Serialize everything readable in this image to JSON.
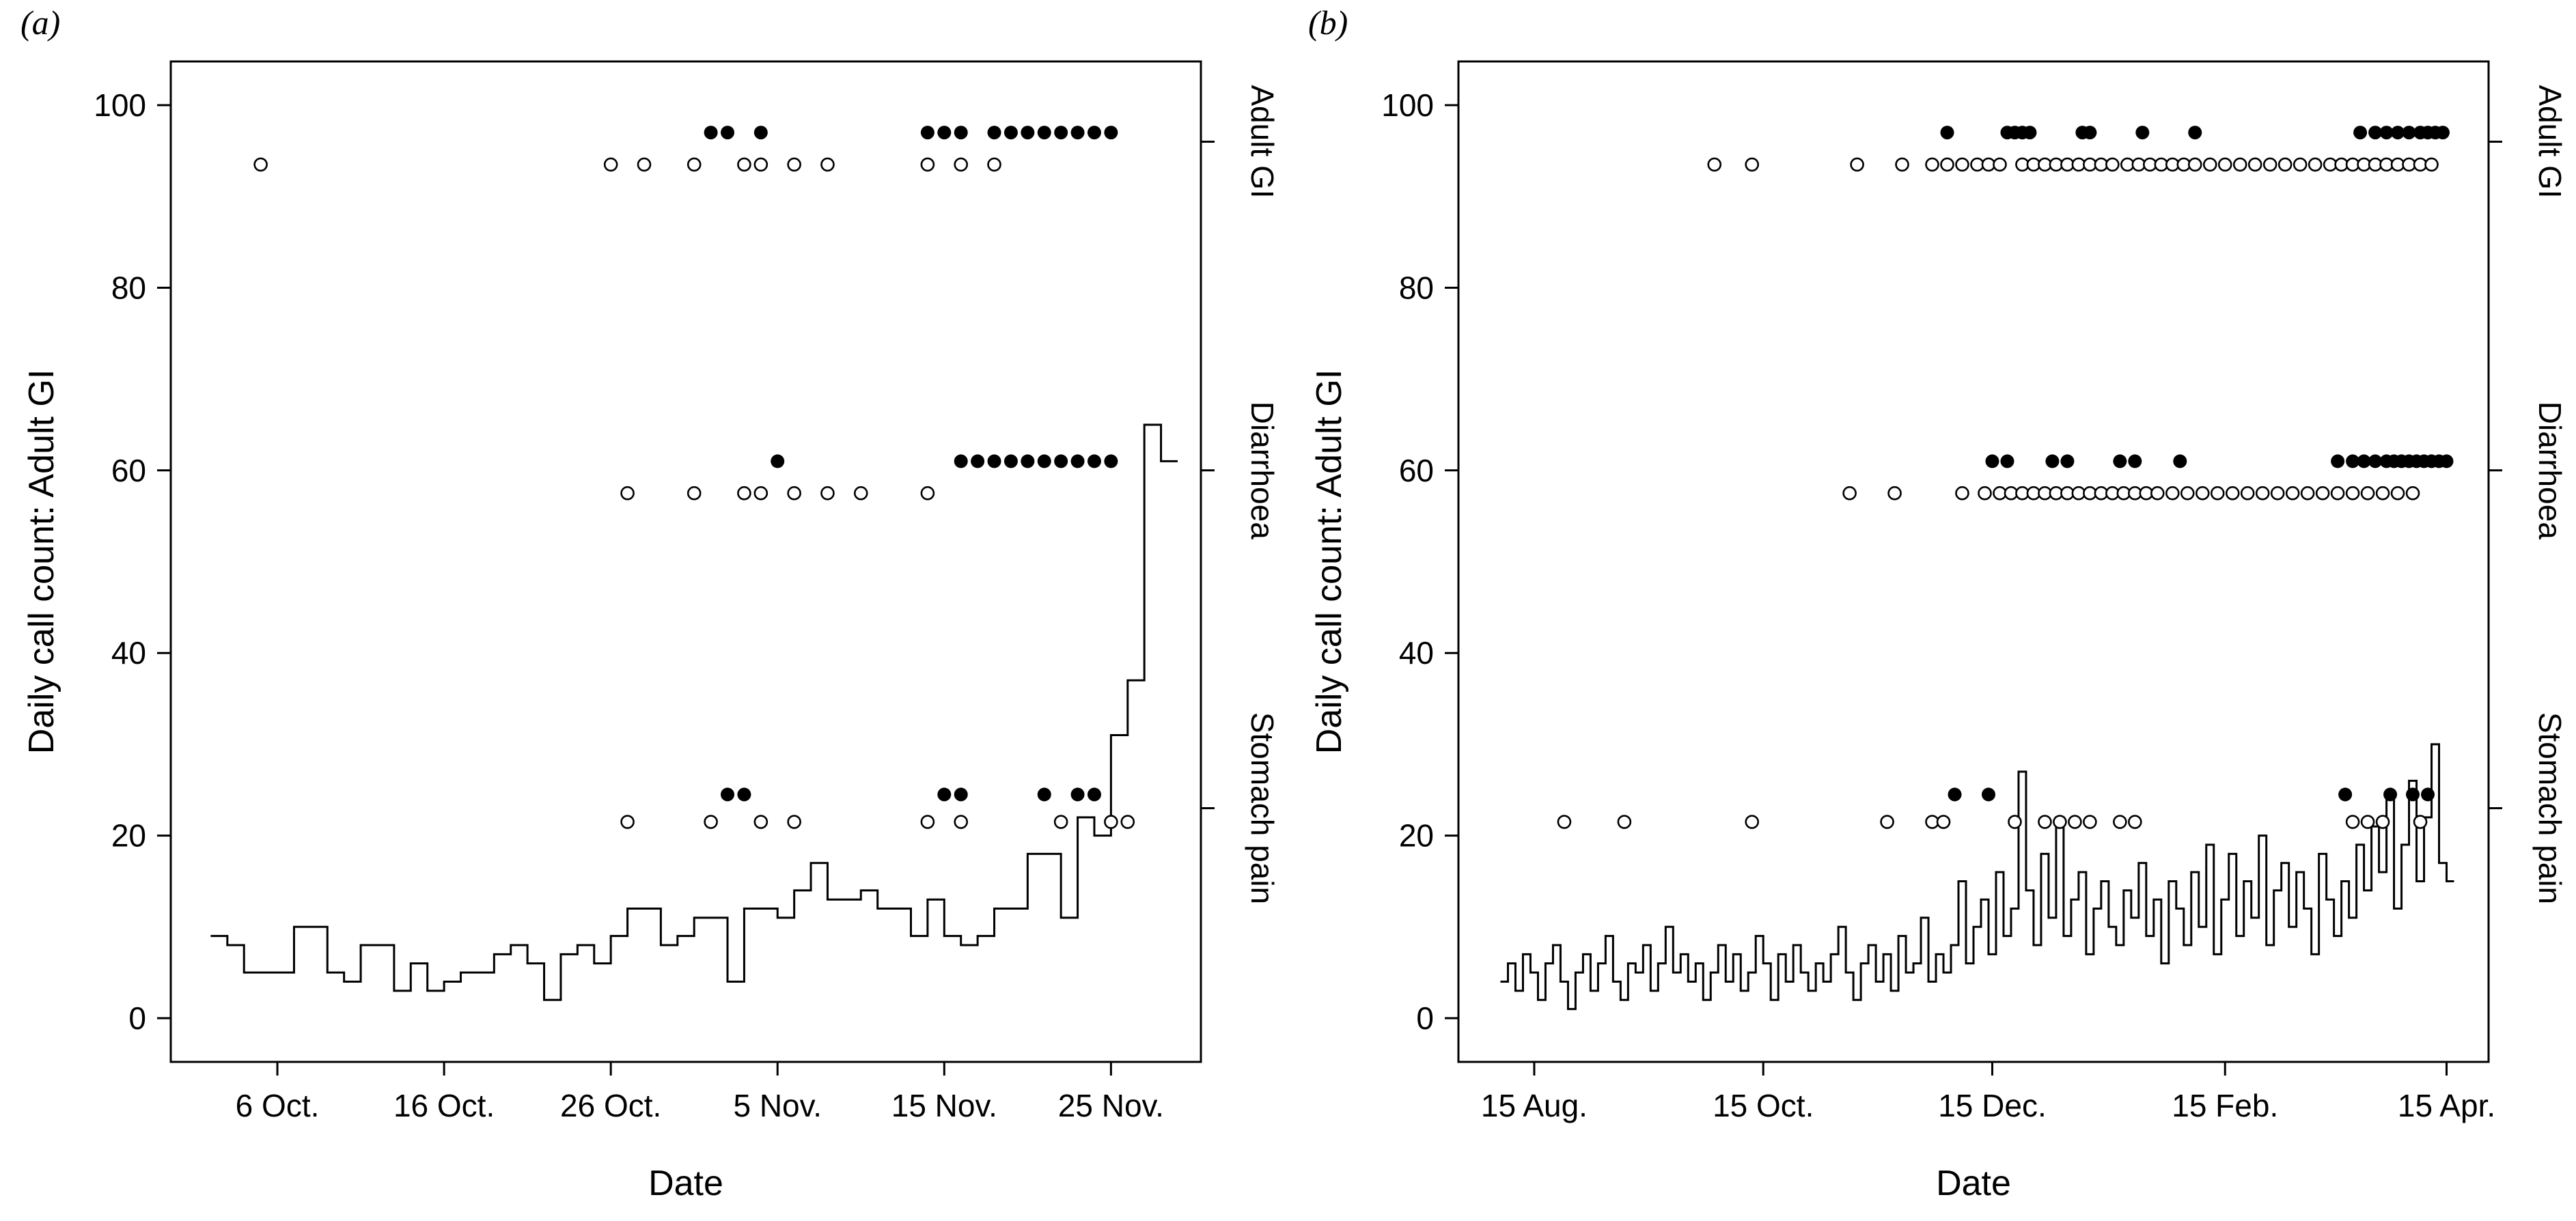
{
  "figure": {
    "background": "#ffffff",
    "ink": "#000000",
    "marker_open_fill": "#ffffff"
  },
  "chart_data": [
    {
      "type": "line",
      "panel_label": "(a)",
      "title": "",
      "xlabel": "Date",
      "ylabel": "Daily call count: Adult GI",
      "ylim": [
        0,
        100
      ],
      "y_ticks": [
        0,
        20,
        40,
        60,
        80,
        100
      ],
      "grid": "off",
      "legend": "none",
      "x_axis": {
        "unit": "days (day 0 = 1 Oct.)",
        "domain": [
          0,
          59
        ],
        "ticks": [
          {
            "pos": 5,
            "label": "6 Oct."
          },
          {
            "pos": 15,
            "label": "16 Oct."
          },
          {
            "pos": 25,
            "label": "26 Oct."
          },
          {
            "pos": 35,
            "label": "5 Nov."
          },
          {
            "pos": 45,
            "label": "15 Nov."
          },
          {
            "pos": 55,
            "label": "25 Nov."
          }
        ]
      },
      "step_line": {
        "name": "daily-call-count",
        "start": 1,
        "step": 1,
        "values": [
          9,
          8,
          5,
          5,
          5,
          10,
          10,
          5,
          4,
          8,
          8,
          3,
          6,
          3,
          4,
          5,
          5,
          7,
          8,
          6,
          2,
          7,
          8,
          6,
          9,
          12,
          12,
          8,
          9,
          11,
          11,
          4,
          12,
          12,
          11,
          14,
          17,
          13,
          13,
          14,
          12,
          12,
          9,
          13,
          9,
          8,
          9,
          12,
          12,
          18,
          18,
          11,
          22,
          20,
          31,
          37,
          65,
          61
        ]
      },
      "marker_bands": [
        {
          "label": "Adult GI",
          "tick_value": 96,
          "filled_y": 97,
          "open_y": 93.5,
          "filled_days": [
            31,
            32,
            34,
            44,
            45,
            46,
            48,
            49,
            50,
            51,
            52,
            53,
            54,
            55
          ],
          "open_days": [
            4,
            25,
            27,
            30,
            33,
            34,
            36,
            38,
            44,
            46,
            48
          ]
        },
        {
          "label": "Diarrhoea",
          "tick_value": 60,
          "filled_y": 61,
          "open_y": 57.5,
          "filled_days": [
            35,
            46,
            47,
            48,
            49,
            50,
            51,
            52,
            53,
            54,
            55
          ],
          "open_days": [
            26,
            30,
            33,
            34,
            36,
            38,
            40,
            44
          ]
        },
        {
          "label": "Stomach pain",
          "tick_value": 23,
          "filled_y": 24.5,
          "open_y": 21.5,
          "filled_days": [
            32,
            33,
            45,
            46,
            51,
            53,
            54
          ],
          "open_days": [
            26,
            31,
            34,
            36,
            44,
            46,
            52,
            55,
            56
          ]
        }
      ]
    },
    {
      "type": "line",
      "panel_label": "(b)",
      "title": "",
      "xlabel": "Date",
      "ylabel": "Daily call count: Adult GI",
      "ylim": [
        0,
        100
      ],
      "y_ticks": [
        0,
        20,
        40,
        60,
        80,
        100
      ],
      "grid": "off",
      "legend": "none",
      "x_axis": {
        "unit": "days (day 0 = 1 Aug.)",
        "domain": [
          0,
          262
        ],
        "ticks": [
          {
            "pos": 14,
            "label": "15 Aug."
          },
          {
            "pos": 75,
            "label": "15 Oct."
          },
          {
            "pos": 136,
            "label": "15 Dec."
          },
          {
            "pos": 198,
            "label": "15 Feb."
          },
          {
            "pos": 257,
            "label": "15 Apr."
          }
        ]
      },
      "step_line": {
        "name": "daily-call-count",
        "start": 5,
        "step": 2,
        "values": [
          4,
          6,
          3,
          7,
          5,
          2,
          6,
          8,
          4,
          1,
          5,
          7,
          3,
          6,
          9,
          4,
          2,
          6,
          5,
          8,
          3,
          6,
          10,
          5,
          7,
          4,
          6,
          2,
          5,
          8,
          4,
          7,
          3,
          5,
          9,
          6,
          2,
          7,
          4,
          8,
          5,
          3,
          6,
          4,
          7,
          10,
          5,
          2,
          6,
          8,
          4,
          7,
          3,
          9,
          5,
          6,
          11,
          4,
          7,
          5,
          8,
          15,
          6,
          10,
          13,
          7,
          16,
          9,
          12,
          27,
          14,
          8,
          18,
          11,
          22,
          9,
          13,
          16,
          7,
          12,
          15,
          10,
          8,
          14,
          11,
          17,
          9,
          13,
          6,
          15,
          12,
          8,
          16,
          10,
          19,
          7,
          13,
          18,
          9,
          15,
          11,
          20,
          8,
          14,
          17,
          10,
          16,
          12,
          7,
          18,
          13,
          9,
          15,
          11,
          19,
          14,
          21,
          16,
          24,
          12,
          19,
          26,
          15,
          22,
          30,
          17,
          15
        ]
      },
      "marker_bands": [
        {
          "label": "Adult GI",
          "tick_value": 96,
          "filled_y": 97,
          "open_y": 93.5,
          "filled_days": [
            124,
            140,
            142,
            144,
            146,
            160,
            162,
            176,
            190,
            234,
            238,
            241,
            244,
            247,
            250,
            252,
            254,
            256
          ],
          "open_days": [
            62,
            72,
            100,
            112,
            120,
            124,
            128,
            132,
            135,
            138,
            144,
            147,
            150,
            153,
            156,
            159,
            162,
            165,
            168,
            172,
            175,
            178,
            181,
            184,
            187,
            190,
            194,
            198,
            202,
            206,
            210,
            214,
            218,
            222,
            226,
            229,
            232,
            235,
            238,
            241,
            244,
            247,
            250,
            253
          ]
        },
        {
          "label": "Diarrhoea",
          "tick_value": 60,
          "filled_y": 61,
          "open_y": 57.5,
          "filled_days": [
            136,
            140,
            152,
            156,
            170,
            174,
            186,
            228,
            232,
            235,
            238,
            241,
            243,
            245,
            247,
            249,
            251,
            253,
            255,
            257
          ],
          "open_days": [
            98,
            110,
            128,
            134,
            138,
            141,
            144,
            147,
            150,
            153,
            156,
            159,
            162,
            165,
            168,
            171,
            174,
            177,
            180,
            184,
            188,
            192,
            196,
            200,
            204,
            208,
            212,
            216,
            220,
            224,
            228,
            232,
            236,
            240,
            244,
            248
          ]
        },
        {
          "label": "Stomach pain",
          "tick_value": 23,
          "filled_y": 24.5,
          "open_y": 21.5,
          "filled_days": [
            126,
            135,
            230,
            242,
            248,
            252
          ],
          "open_days": [
            22,
            38,
            72,
            108,
            120,
            123,
            142,
            150,
            154,
            158,
            162,
            170,
            174,
            232,
            236,
            240,
            250
          ]
        }
      ]
    }
  ]
}
